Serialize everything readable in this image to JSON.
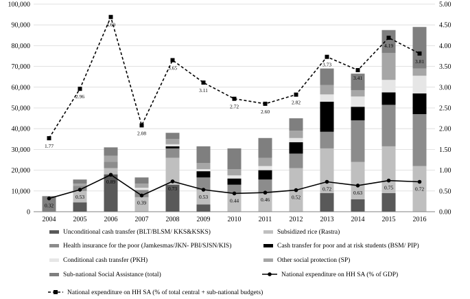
{
  "chart_data": {
    "type": "bar",
    "title": "",
    "xlabel": "",
    "ylabel": "",
    "ylabel_right": "",
    "categories": [
      "2004",
      "2005",
      "2006",
      "2007",
      "2008",
      "2009",
      "2010",
      "2011",
      "2012",
      "2013",
      "2014",
      "2015",
      "2016"
    ],
    "ylim": [
      0,
      100000
    ],
    "y2lim": [
      0,
      5
    ],
    "y_ticks": [
      "0",
      "10,000",
      "20,000",
      "30,000",
      "40,000",
      "50,000",
      "60,000",
      "70,000",
      "80,000",
      "90,000",
      "100,000"
    ],
    "y2_ticks": [
      "0.00",
      "0.50",
      "1.00",
      "1.50",
      "2.00",
      "2.50",
      "3.00",
      "3.50",
      "4.00",
      "4.50",
      "5.00"
    ],
    "legend_position": "bottom",
    "series": [
      {
        "name": "Unconditional cash  transfer (BLT/BLSM/ KKS&KSKS)",
        "color": "#595959",
        "values": [
          0,
          4500,
          18000,
          0,
          13000,
          3500,
          0,
          0,
          0,
          9000,
          6000,
          9000,
          0
        ]
      },
      {
        "name": "Subsidized rice (Rastra)",
        "color": "#bfbfbf",
        "values": [
          0,
          5500,
          3000,
          7000,
          13000,
          7000,
          9000,
          9000,
          21000,
          21500,
          18000,
          22500,
          22000
        ]
      },
      {
        "name": "Health insurance for the poor (Jamkesmas/JKN- PBI/SJSN/KIS)",
        "color": "#8c8c8c",
        "values": [
          0,
          2500,
          3000,
          3500,
          4500,
          6000,
          4000,
          6500,
          7000,
          8000,
          20000,
          20000,
          25000
        ]
      },
      {
        "name": "Cash transfer for poor and at risk students (BSM/ PIP)",
        "color": "#000000",
        "values": [
          0,
          0,
          0,
          0,
          1000,
          3000,
          3000,
          4500,
          5500,
          14500,
          6500,
          6000,
          10000
        ]
      },
      {
        "name": "Conditional cash transfer (PKH)",
        "color": "#e6e6e6",
        "values": [
          0,
          0,
          0,
          1000,
          1000,
          1000,
          1500,
          2000,
          2000,
          3500,
          5000,
          6000,
          8500
        ]
      },
      {
        "name": "Other social protection (SP)",
        "color": "#a6a6a6",
        "values": [
          0,
          1000,
          3000,
          2000,
          2500,
          3000,
          3000,
          4000,
          3500,
          4500,
          3000,
          13000,
          3500
        ]
      },
      {
        "name": "Sub-national Social Assistance (total)",
        "color": "#7f7f7f",
        "values": [
          7500,
          2000,
          4000,
          3000,
          3000,
          8000,
          10000,
          9500,
          6000,
          8000,
          8000,
          11000,
          20000
        ]
      }
    ],
    "lines": [
      {
        "name": "National expenditure on HH SA (% of GDP)",
        "marker": "circle",
        "dash": false,
        "axis": "right",
        "values": [
          0.32,
          0.53,
          0.89,
          0.39,
          0.73,
          0.53,
          0.44,
          0.46,
          0.52,
          0.72,
          0.63,
          0.75,
          0.72
        ],
        "labels": [
          "0.32",
          "0.53",
          "0.89",
          "0.39",
          "0.73",
          "0.53",
          "0.44",
          "0.46",
          "0.52",
          "0.72",
          "0.63",
          "0.75",
          "0.72"
        ]
      },
      {
        "name": "National expenditure on HH SA (% of total central + sub-national budgets)",
        "marker": "square",
        "dash": true,
        "axis": "right",
        "values": [
          1.77,
          2.96,
          4.69,
          2.08,
          3.65,
          3.11,
          2.72,
          2.6,
          2.82,
          3.73,
          3.41,
          4.19,
          3.81
        ],
        "labels": [
          "1.77",
          "2.96",
          "4.69",
          "2.08",
          "3.65",
          "3.11",
          "2.72",
          "2.60",
          "2.82",
          "3.73",
          "3.41",
          "4.19",
          "3.81"
        ]
      }
    ]
  }
}
